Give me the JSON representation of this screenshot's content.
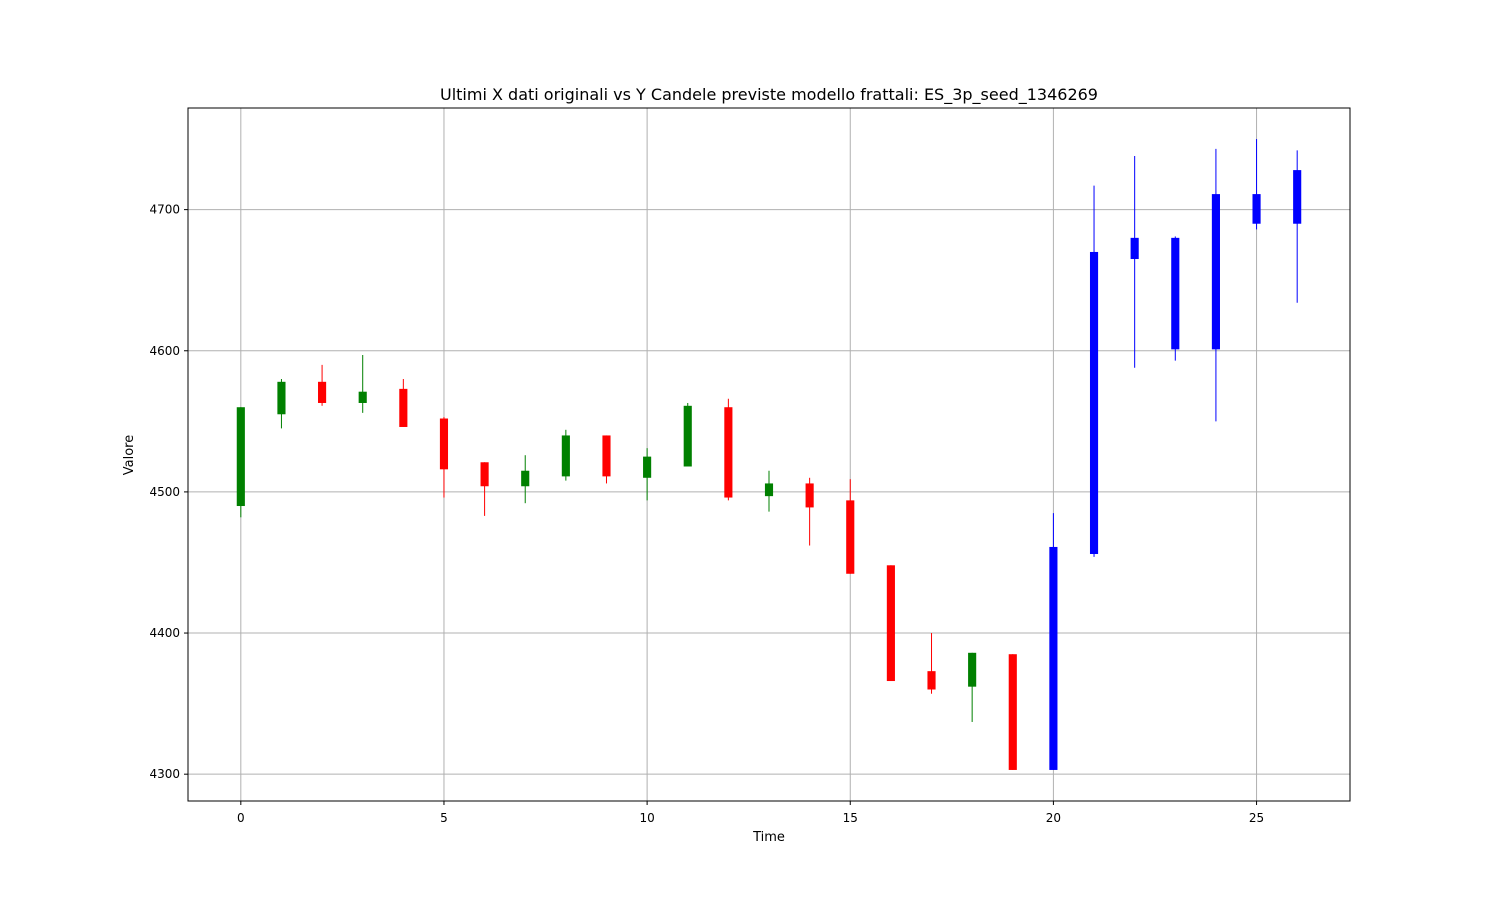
{
  "chart_data": {
    "type": "candlestick",
    "title": "Ultimi X dati originali vs Y Candele previste modello frattali: ES_3p_seed_1346269",
    "xlabel": "Time",
    "ylabel": "Valore",
    "xlim": [
      -1.3,
      27.3
    ],
    "ylim": [
      4281,
      4772
    ],
    "xticks": [
      0,
      5,
      10,
      15,
      20,
      25
    ],
    "yticks": [
      4300,
      4400,
      4500,
      4600,
      4700
    ],
    "grid": true,
    "colors": {
      "up": "#008000",
      "down": "#ff0000",
      "forecast": "#0000ff"
    },
    "candles": [
      {
        "x": 0,
        "open": 4490,
        "high": 4560,
        "low": 4482,
        "close": 4560,
        "kind": "up"
      },
      {
        "x": 1,
        "open": 4555,
        "high": 4580,
        "low": 4545,
        "close": 4578,
        "kind": "up"
      },
      {
        "x": 2,
        "open": 4578,
        "high": 4590,
        "low": 4561,
        "close": 4563,
        "kind": "down"
      },
      {
        "x": 3,
        "open": 4563,
        "high": 4597,
        "low": 4556,
        "close": 4571,
        "kind": "up"
      },
      {
        "x": 4,
        "open": 4573,
        "high": 4580,
        "low": 4546,
        "close": 4546,
        "kind": "down"
      },
      {
        "x": 5,
        "open": 4552,
        "high": 4553,
        "low": 4496,
        "close": 4516,
        "kind": "down"
      },
      {
        "x": 6,
        "open": 4521,
        "high": 4521,
        "low": 4483,
        "close": 4504,
        "kind": "down"
      },
      {
        "x": 7,
        "open": 4504,
        "high": 4526,
        "low": 4492,
        "close": 4515,
        "kind": "up"
      },
      {
        "x": 8,
        "open": 4511,
        "high": 4544,
        "low": 4508,
        "close": 4540,
        "kind": "up"
      },
      {
        "x": 9,
        "open": 4540,
        "high": 4540,
        "low": 4506,
        "close": 4511,
        "kind": "down"
      },
      {
        "x": 10,
        "open": 4510,
        "high": 4531,
        "low": 4494,
        "close": 4525,
        "kind": "up"
      },
      {
        "x": 11,
        "open": 4518,
        "high": 4563,
        "low": 4518,
        "close": 4561,
        "kind": "up"
      },
      {
        "x": 12,
        "open": 4560,
        "high": 4566,
        "low": 4494,
        "close": 4496,
        "kind": "down"
      },
      {
        "x": 13,
        "open": 4497,
        "high": 4515,
        "low": 4486,
        "close": 4506,
        "kind": "up"
      },
      {
        "x": 14,
        "open": 4506,
        "high": 4510,
        "low": 4462,
        "close": 4489,
        "kind": "down"
      },
      {
        "x": 15,
        "open": 4494,
        "high": 4509,
        "low": 4442,
        "close": 4442,
        "kind": "down"
      },
      {
        "x": 16,
        "open": 4448,
        "high": 4448,
        "low": 4366,
        "close": 4366,
        "kind": "down"
      },
      {
        "x": 17,
        "open": 4373,
        "high": 4400,
        "low": 4357,
        "close": 4360,
        "kind": "down"
      },
      {
        "x": 18,
        "open": 4362,
        "high": 4386,
        "low": 4337,
        "close": 4386,
        "kind": "up"
      },
      {
        "x": 19,
        "open": 4385,
        "high": 4385,
        "low": 4303,
        "close": 4303,
        "kind": "down"
      },
      {
        "x": 20,
        "open": 4303,
        "high": 4485,
        "low": 4303,
        "close": 4461,
        "kind": "forecast"
      },
      {
        "x": 21,
        "open": 4456,
        "high": 4717,
        "low": 4454,
        "close": 4670,
        "kind": "forecast"
      },
      {
        "x": 22,
        "open": 4665,
        "high": 4738,
        "low": 4588,
        "close": 4680,
        "kind": "forecast"
      },
      {
        "x": 23,
        "open": 4601,
        "high": 4681,
        "low": 4593,
        "close": 4680,
        "kind": "forecast"
      },
      {
        "x": 24,
        "open": 4601,
        "high": 4743,
        "low": 4550,
        "close": 4711,
        "kind": "forecast"
      },
      {
        "x": 25,
        "open": 4690,
        "high": 4750,
        "low": 4686,
        "close": 4711,
        "kind": "forecast"
      },
      {
        "x": 26,
        "open": 4690,
        "high": 4742,
        "low": 4634,
        "close": 4728,
        "kind": "forecast"
      }
    ]
  }
}
